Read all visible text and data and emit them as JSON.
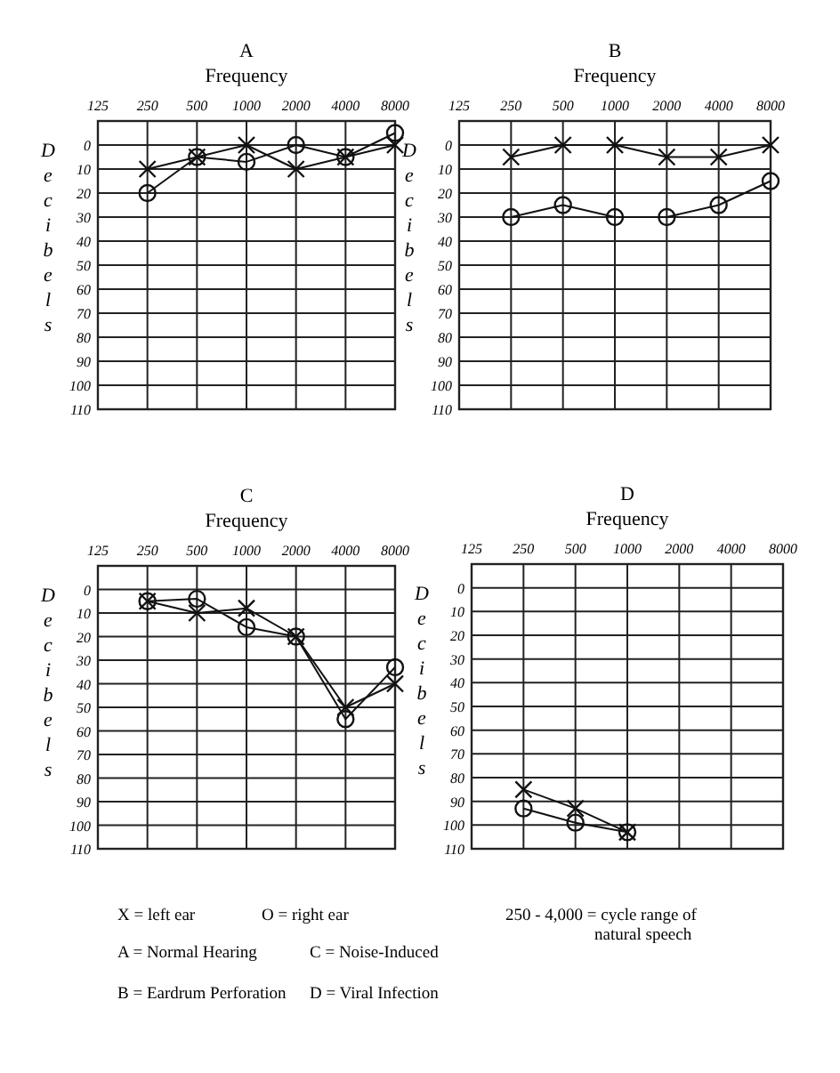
{
  "chart_data": [
    {
      "type": "line",
      "title": "A",
      "xlabel": "Frequency",
      "ylabel": "Decibels",
      "categories": [
        "125",
        "250",
        "500",
        "1000",
        "2000",
        "4000",
        "8000"
      ],
      "ylim": [
        110,
        -10
      ],
      "yticks": [
        0,
        10,
        20,
        30,
        40,
        50,
        60,
        70,
        80,
        90,
        100,
        110
      ],
      "grid": true,
      "line_style": "solid",
      "series": [
        {
          "color": "#111111",
          "marker": "cross",
          "values": [
            null,
            10,
            5,
            0,
            10,
            5,
            0
          ]
        },
        {
          "color": "#111111",
          "marker": "circle",
          "values": [
            null,
            20,
            5,
            7,
            0,
            5,
            -5
          ]
        }
      ]
    },
    {
      "type": "line",
      "title": "B",
      "xlabel": "Frequency",
      "ylabel": "Decibels",
      "categories": [
        "125",
        "250",
        "500",
        "1000",
        "2000",
        "4000",
        "8000"
      ],
      "ylim": [
        110,
        -10
      ],
      "yticks": [
        0,
        10,
        20,
        30,
        40,
        50,
        60,
        70,
        80,
        90,
        100,
        110
      ],
      "grid": true,
      "line_style": "solid",
      "series": [
        {
          "color": "#111111",
          "marker": "cross",
          "values": [
            null,
            5,
            0,
            0,
            5,
            5,
            0
          ]
        },
        {
          "color": "#111111",
          "marker": "circle",
          "values": [
            null,
            30,
            25,
            30,
            30,
            25,
            15
          ]
        }
      ]
    },
    {
      "type": "line",
      "title": "C",
      "xlabel": "Frequency",
      "ylabel": "Decibels",
      "categories": [
        "125",
        "250",
        "500",
        "1000",
        "2000",
        "4000",
        "8000"
      ],
      "ylim": [
        110,
        -10
      ],
      "yticks": [
        0,
        10,
        20,
        30,
        40,
        50,
        60,
        70,
        80,
        90,
        100,
        110
      ],
      "grid": true,
      "line_style": "solid",
      "series": [
        {
          "color": "#111111",
          "marker": "circle",
          "values": [
            null,
            5,
            4,
            16,
            20,
            55,
            33
          ]
        },
        {
          "color": "#111111",
          "marker": "cross",
          "values": [
            null,
            5,
            10,
            8,
            20,
            50,
            40
          ]
        }
      ]
    },
    {
      "type": "line",
      "title": "D",
      "xlabel": "Frequency",
      "ylabel": "Decibels",
      "categories": [
        "125",
        "250",
        "500",
        "1000",
        "2000",
        "4000",
        "8000"
      ],
      "ylim": [
        110,
        -10
      ],
      "yticks": [
        0,
        10,
        20,
        30,
        40,
        50,
        60,
        70,
        80,
        90,
        100,
        110
      ],
      "grid": true,
      "line_style": "solid",
      "series": [
        {
          "color": "#111111",
          "marker": "cross",
          "values": [
            null,
            85,
            93,
            103,
            null,
            null,
            null
          ]
        },
        {
          "color": "#111111",
          "marker": "circle",
          "values": [
            null,
            93,
            99,
            103,
            null,
            null,
            null
          ]
        }
      ]
    },
    {
      "type": "other",
      "annotations": [
        "X = left ear",
        "O = right ear",
        "A = Normal Hearing",
        "C = Noise-Induced",
        "B = Eardrum Perforation",
        "D = Viral Infection",
        "250 - 4,000 = cycle range of natural speech"
      ]
    }
  ]
}
